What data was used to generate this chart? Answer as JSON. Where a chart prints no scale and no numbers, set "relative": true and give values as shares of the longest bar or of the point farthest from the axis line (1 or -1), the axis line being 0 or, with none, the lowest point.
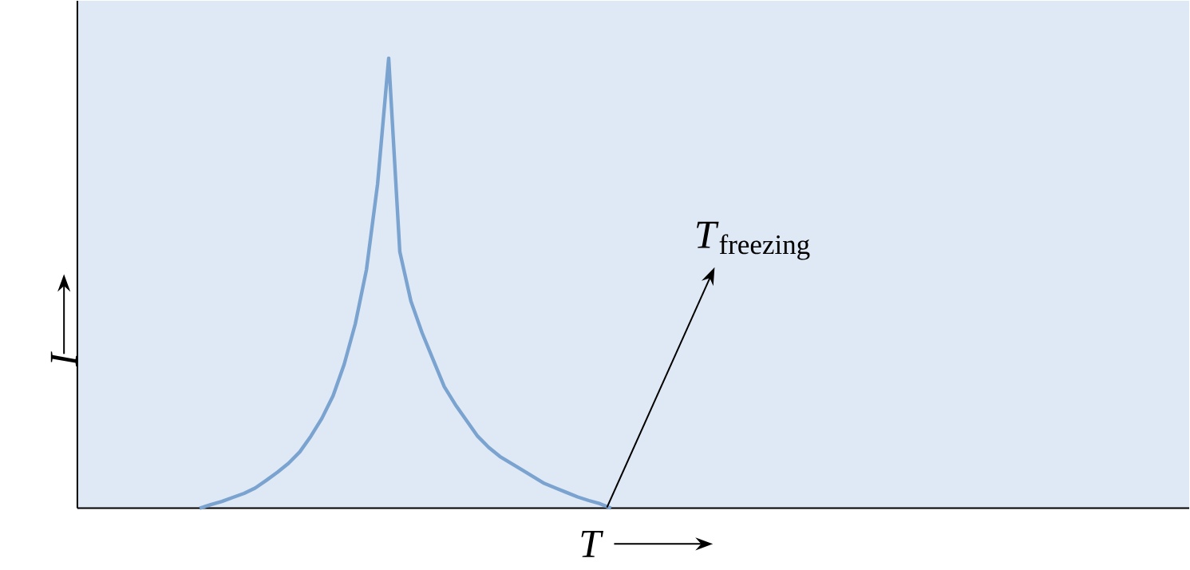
{
  "chart_data": {
    "type": "line",
    "relative": true,
    "xlabel": "T",
    "ylabel": "I",
    "annotations": [
      "*T*$_{freezing}$"
    ],
    "categories": [
      null,
      null,
      null,
      null,
      null,
      null,
      null,
      null,
      null,
      null,
      null,
      null,
      null,
      null,
      null,
      null,
      null,
      null,
      null,
      null,
      null,
      null,
      null,
      null,
      null,
      null,
      null,
      null,
      null,
      null,
      null,
      null,
      null,
      null,
      null,
      null,
      null,
      null,
      null,
      null,
      null,
      null,
      null,
      null,
      null,
      null,
      null,
      null,
      null,
      null,
      null,
      null,
      null,
      null,
      null,
      null,
      null,
      null,
      null,
      null,
      null,
      null,
      null,
      null,
      null,
      null,
      null,
      null,
      null,
      null,
      null,
      null,
      null,
      null,
      null,
      null,
      null,
      null,
      null,
      null,
      null,
      null,
      null,
      null,
      null,
      null,
      null,
      null,
      null,
      null,
      null,
      null,
      null,
      null,
      null,
      null,
      null,
      null,
      null,
      null,
      null
    ],
    "series": [
      {
        "color": "#7ba3cf",
        "values": [
          null,
          null,
          null,
          null,
          null,
          null,
          null,
          null,
          null,
          null,
          null,
          0.0,
          0.008,
          0.015,
          0.024,
          0.033,
          0.045,
          0.062,
          0.08,
          0.1,
          0.125,
          0.16,
          0.2,
          0.25,
          0.32,
          0.41,
          0.53,
          0.72,
          1.0,
          0.57,
          0.46,
          0.39,
          0.33,
          0.27,
          0.23,
          0.195,
          0.16,
          0.135,
          0.115,
          0.1,
          0.085,
          0.07,
          0.055,
          0.045,
          0.035,
          0.025,
          0.017,
          0.01,
          0.0,
          null,
          null,
          null,
          null,
          null,
          null,
          null,
          null,
          null,
          null,
          null,
          null,
          null,
          null,
          null,
          null,
          null,
          null,
          null,
          null,
          null,
          null,
          null,
          null,
          null,
          null,
          null,
          null,
          null,
          null,
          null,
          null,
          null,
          null,
          null,
          null,
          null,
          null,
          null,
          null,
          null,
          null,
          null,
          null,
          null,
          null,
          null,
          null,
          null,
          null,
          null,
          null
        ]
      }
    ]
  }
}
